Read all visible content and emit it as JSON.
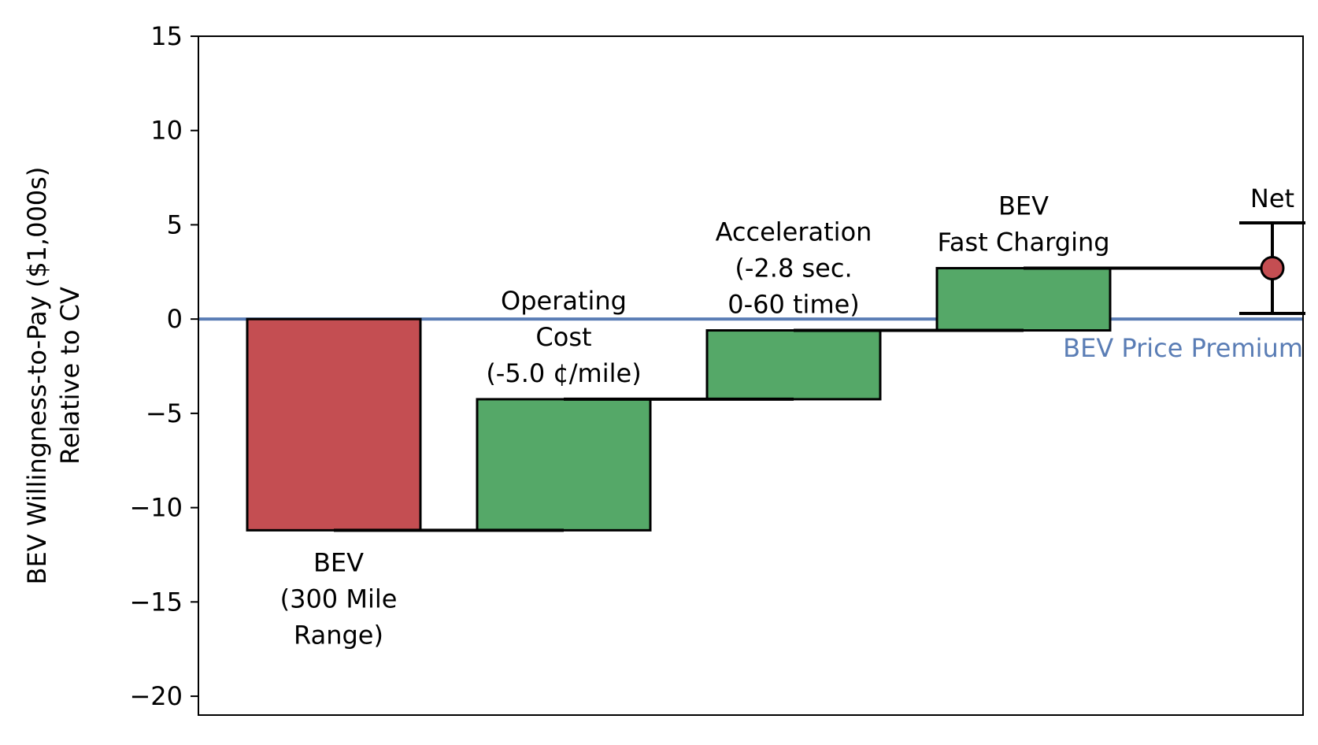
{
  "chart_data": {
    "type": "bar",
    "subtype": "waterfall",
    "ylabel_lines": [
      "BEV Willingness-to-Pay ($1,000s)",
      "Relative to CV"
    ],
    "xlabel": "",
    "ylim": [
      -21,
      15
    ],
    "yticks": [
      15,
      10,
      5,
      0,
      -5,
      -10,
      -15,
      -20
    ],
    "ytick_labels": [
      "15",
      "10",
      "5",
      "0",
      "−5",
      "−10",
      "−15",
      "−20"
    ],
    "steps": [
      {
        "label_lines": [
          "BEV",
          "(300 Mile",
          "Range)"
        ],
        "label_position": "below",
        "start": 0,
        "end": -11.2,
        "delta": -11.2,
        "color": "#c44e52"
      },
      {
        "label_lines": [
          "Operating",
          "Cost",
          "(-5.0 ¢/mile)"
        ],
        "label_position": "above",
        "start": -11.2,
        "end": -4.25,
        "delta": 6.95,
        "color": "#55a868"
      },
      {
        "label_lines": [
          "Acceleration",
          "(-2.8 sec.",
          "0-60 time)"
        ],
        "label_position": "above",
        "start": -4.25,
        "end": -0.6,
        "delta": 3.65,
        "color": "#55a868"
      },
      {
        "label_lines": [
          "BEV",
          "Fast Charging"
        ],
        "label_position": "above",
        "start": -0.6,
        "end": 2.7,
        "delta": 3.3,
        "color": "#55a868"
      }
    ],
    "net": {
      "label": "Net",
      "value": 2.7,
      "error_low": 0.3,
      "error_high": 5.1,
      "color": "#c44e52"
    },
    "reference_line": {
      "value": 0,
      "label": "BEV Price Premium",
      "color": "#5a7db5"
    },
    "grid": false,
    "legend": "none"
  }
}
